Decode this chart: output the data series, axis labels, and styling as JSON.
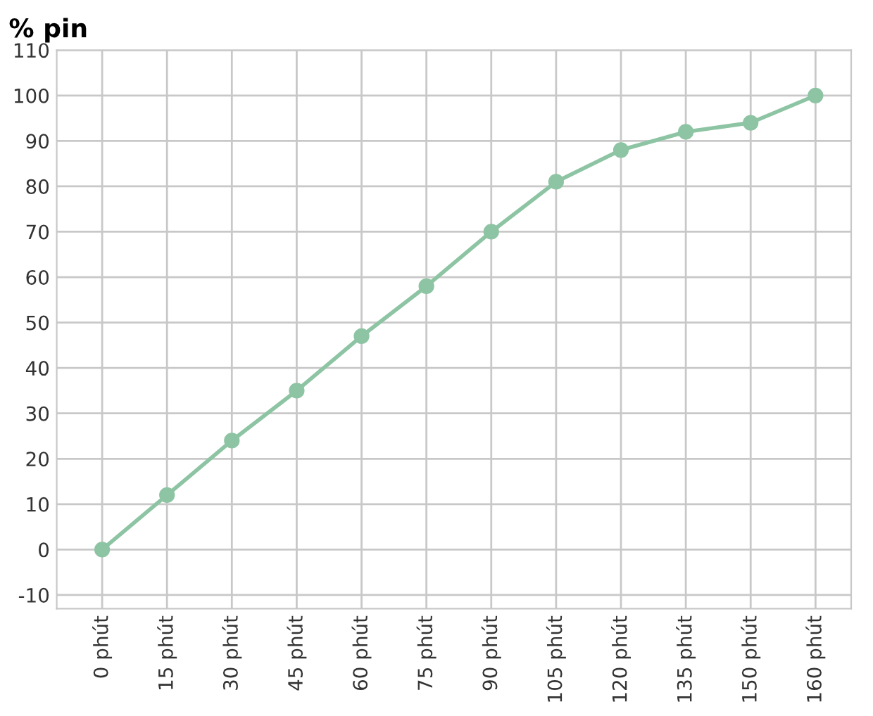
{
  "chart_data": {
    "type": "line",
    "ylabel": "% pin",
    "categories": [
      "0 phút",
      "15 phút",
      "30 phút",
      "45 phút",
      "60 phút",
      "75 phút",
      "90 phút",
      "105 phút",
      "120 phút",
      "135 phút",
      "150 phút",
      "160 phút"
    ],
    "series": [
      {
        "color": "#8dc4a3",
        "values": [
          0,
          12,
          24,
          35,
          47,
          58,
          70,
          81,
          88,
          92,
          94,
          100
        ]
      }
    ],
    "ylim": [
      -13,
      110
    ],
    "yticks": [
      -10,
      0,
      10,
      20,
      30,
      40,
      50,
      60,
      70,
      80,
      90,
      100,
      110
    ],
    "grid": true,
    "marker": "circle",
    "line_style": "solid",
    "legend": false
  }
}
